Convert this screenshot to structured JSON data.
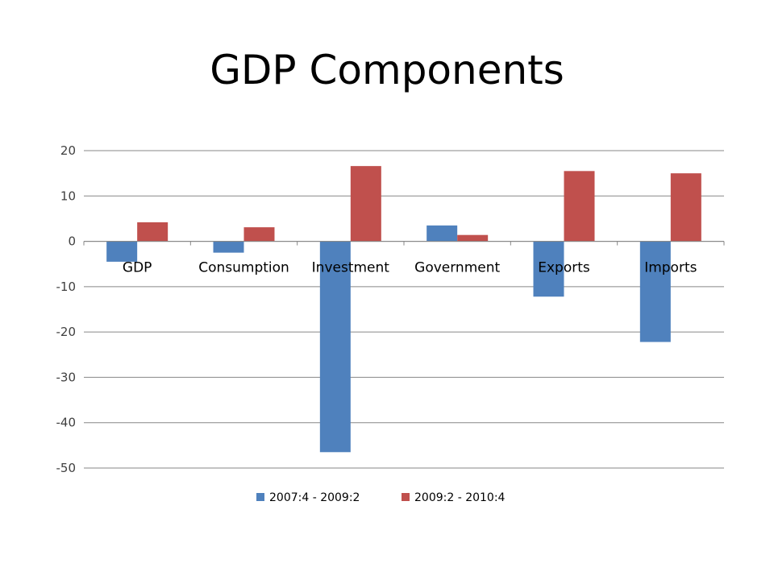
{
  "chart_data": {
    "type": "bar",
    "title": "GDP Components",
    "categories": [
      "GDP",
      "Consumption",
      "Investment",
      "Government",
      "Exports",
      "Imports"
    ],
    "series": [
      {
        "name": "2007:4 - 2009:2",
        "color": "#4F81BD",
        "values": [
          -4.5,
          -2.5,
          -46.5,
          3.5,
          -12.2,
          -22.2
        ]
      },
      {
        "name": "2009:2 - 2010:4",
        "color": "#C0504D",
        "values": [
          4.2,
          3.1,
          16.6,
          1.4,
          15.5,
          15.0
        ]
      }
    ],
    "yticks": [
      20,
      10,
      0,
      -10,
      -20,
      -30,
      -40,
      -50
    ],
    "ylim": [
      -50,
      20
    ],
    "grid": true,
    "legend": "bottom",
    "xlabel": "",
    "ylabel": ""
  }
}
